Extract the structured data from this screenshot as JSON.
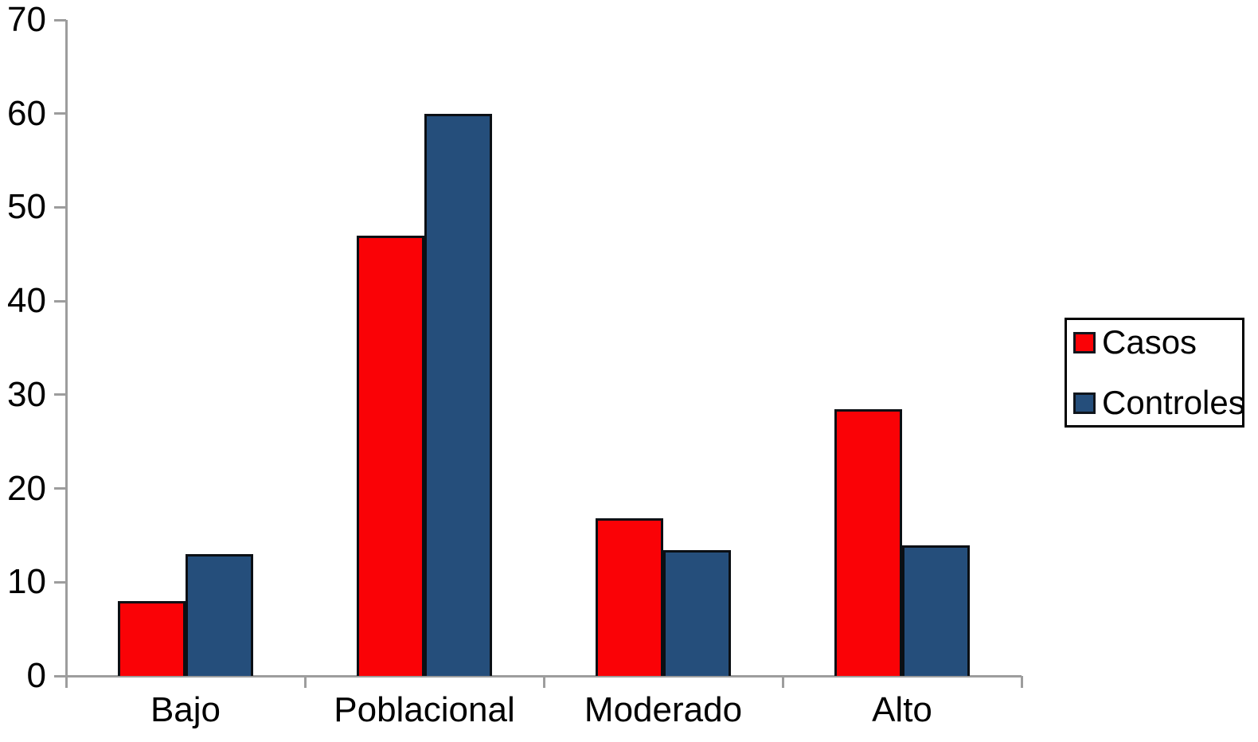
{
  "chart_data": {
    "type": "bar",
    "title": "",
    "xlabel": "",
    "ylabel": "",
    "categories": [
      "Bajo",
      "Poblacional",
      "Moderado",
      "Alto"
    ],
    "series": [
      {
        "name": "Casos",
        "color": "#fa0206",
        "values": [
          8,
          47,
          16.8,
          28.5
        ]
      },
      {
        "name": "Controles",
        "color": "#254e7b",
        "values": [
          13,
          60,
          13.4,
          13.9
        ]
      }
    ],
    "ylim": [
      0,
      70
    ],
    "yticks": [
      0,
      10,
      20,
      30,
      40,
      50,
      60,
      70
    ],
    "grid": false,
    "legend_position": "right",
    "colors": {
      "bar_border": "#0b0f14",
      "axis": "#9d9d9d",
      "text": "#000000",
      "background": "#ffffff",
      "legend_border": "#000000"
    }
  }
}
